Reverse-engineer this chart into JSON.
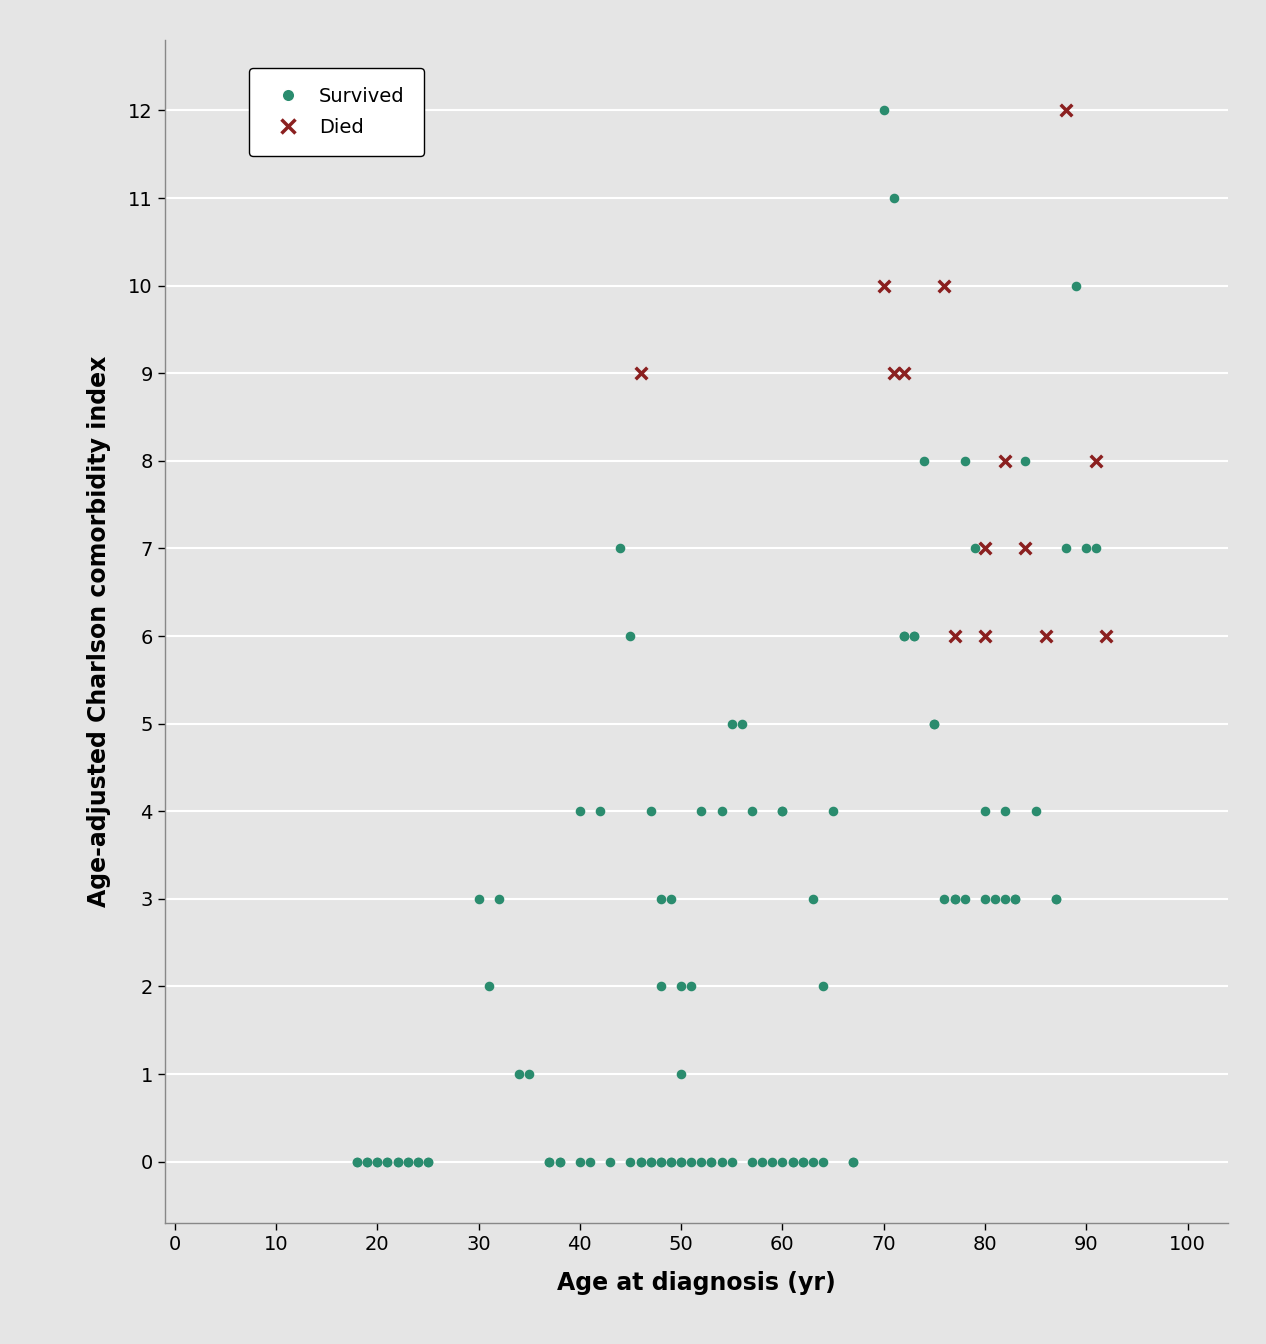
{
  "survived_x": [
    18,
    19,
    20,
    21,
    22,
    23,
    24,
    25,
    30,
    31,
    32,
    34,
    35,
    37,
    38,
    40,
    42,
    44,
    45,
    46,
    47,
    47,
    48,
    48,
    48,
    49,
    49,
    50,
    50,
    50,
    51,
    52,
    53,
    54,
    55,
    56,
    57,
    58,
    59,
    60,
    60,
    61,
    62,
    63,
    63,
    64,
    65,
    67,
    70,
    71,
    72,
    72,
    73,
    73,
    74,
    75,
    75,
    76,
    77,
    77,
    78,
    78,
    79,
    80,
    80,
    81,
    82,
    82,
    83,
    83,
    84,
    85,
    87,
    87,
    88,
    89,
    90,
    91
  ],
  "survived_y": [
    0,
    0,
    0,
    0,
    0,
    0,
    0,
    0,
    3,
    2,
    3,
    1,
    1,
    0,
    0,
    4,
    4,
    7,
    6,
    0,
    4,
    0,
    2,
    0,
    3,
    0,
    3,
    1,
    2,
    0,
    2,
    4,
    0,
    4,
    5,
    5,
    4,
    0,
    0,
    4,
    4,
    0,
    0,
    3,
    0,
    2,
    4,
    0,
    12,
    11,
    6,
    6,
    6,
    6,
    8,
    5,
    5,
    3,
    3,
    3,
    3,
    8,
    7,
    4,
    3,
    3,
    4,
    3,
    3,
    3,
    8,
    4,
    3,
    3,
    7,
    10,
    7,
    7
  ],
  "survived_x_zero": [
    18,
    19,
    20,
    21,
    22,
    23,
    24,
    25,
    37,
    38,
    40,
    41,
    43,
    45,
    46,
    47,
    48,
    49,
    50,
    51,
    52,
    53,
    54,
    55,
    57,
    60,
    61,
    62,
    64,
    67
  ],
  "survived_y_zero": [
    0,
    0,
    0,
    0,
    0,
    0,
    0,
    0,
    0,
    0,
    0,
    0,
    0,
    0,
    0,
    0,
    0,
    0,
    0,
    0,
    0,
    0,
    0,
    0,
    0,
    0,
    0,
    0,
    0,
    0
  ],
  "died_x": [
    46,
    70,
    71,
    72,
    76,
    77,
    80,
    80,
    82,
    84,
    86,
    88,
    91,
    92
  ],
  "died_y": [
    9,
    10,
    9,
    9,
    10,
    6,
    7,
    6,
    8,
    7,
    6,
    12,
    8,
    6
  ],
  "survived_color": "#2a8c6e",
  "died_color": "#8b2020",
  "bg_color": "#e5e5e5",
  "plot_bg_color": "#e5e5e5",
  "xlabel": "Age at diagnosis (yr)",
  "ylabel": "Age-adjusted Charlson comorbidity index",
  "xlim": [
    -1,
    104
  ],
  "ylim": [
    -0.7,
    12.8
  ],
  "xticks": [
    0,
    10,
    20,
    30,
    40,
    50,
    60,
    70,
    80,
    90,
    100
  ],
  "yticks": [
    0,
    1,
    2,
    3,
    4,
    5,
    6,
    7,
    8,
    9,
    10,
    11,
    12
  ],
  "marker_size_survived": 35,
  "marker_size_died": 70,
  "xlabel_fontsize": 17,
  "ylabel_fontsize": 17,
  "tick_fontsize": 14,
  "legend_fontsize": 14
}
